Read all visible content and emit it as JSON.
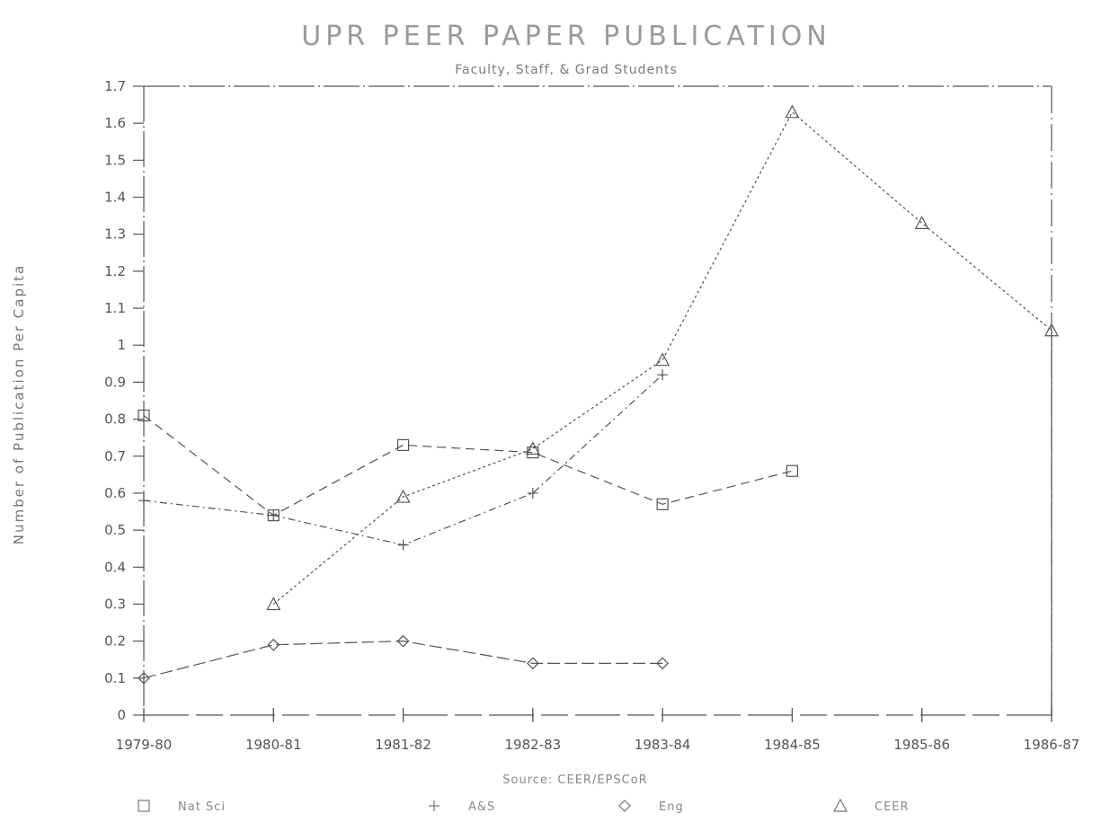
{
  "chart_data": {
    "type": "line",
    "title": "UPR PEER PAPER PUBLICATION",
    "subtitle": "Faculty, Staff, & Grad Students",
    "ylabel": "Number of Publication Per Capita",
    "xlabel": "",
    "source": "Source: CEER/EPSCoR",
    "categories": [
      "1979-80",
      "1980-81",
      "1981-82",
      "1982-83",
      "1983-84",
      "1984-85",
      "1985-86",
      "1986-87"
    ],
    "ylim": [
      0,
      1.7
    ],
    "yticks": [
      "0",
      "0.1",
      "0.2",
      "0.3",
      "0.4",
      "0.5",
      "0.6",
      "0.7",
      "0.8",
      "0.9",
      "1",
      "1.1",
      "1.2",
      "1.3",
      "1.4",
      "1.5",
      "1.6",
      "1.7"
    ],
    "grid": false,
    "legend_position": "bottom",
    "series": [
      {
        "name": "Nat Sci",
        "marker": "square",
        "color": "#555555",
        "values": [
          0.81,
          0.54,
          0.73,
          0.71,
          0.57,
          0.66,
          null,
          null
        ]
      },
      {
        "name": "A&S",
        "marker": "plus",
        "color": "#555555",
        "values": [
          0.58,
          0.54,
          0.46,
          0.6,
          0.92,
          null,
          null,
          null
        ]
      },
      {
        "name": "Eng",
        "marker": "diamond",
        "color": "#555555",
        "values": [
          0.1,
          0.19,
          0.2,
          0.14,
          0.14,
          null,
          null,
          null
        ]
      },
      {
        "name": "CEER",
        "marker": "triangle",
        "color": "#555555",
        "values": [
          null,
          0.3,
          0.59,
          0.72,
          0.96,
          1.63,
          1.33,
          1.04
        ]
      },
      {
        "marker": "tick",
        "color": "#555555",
        "values": [
          0,
          0,
          0,
          0,
          0,
          0,
          0,
          0
        ]
      }
    ]
  }
}
